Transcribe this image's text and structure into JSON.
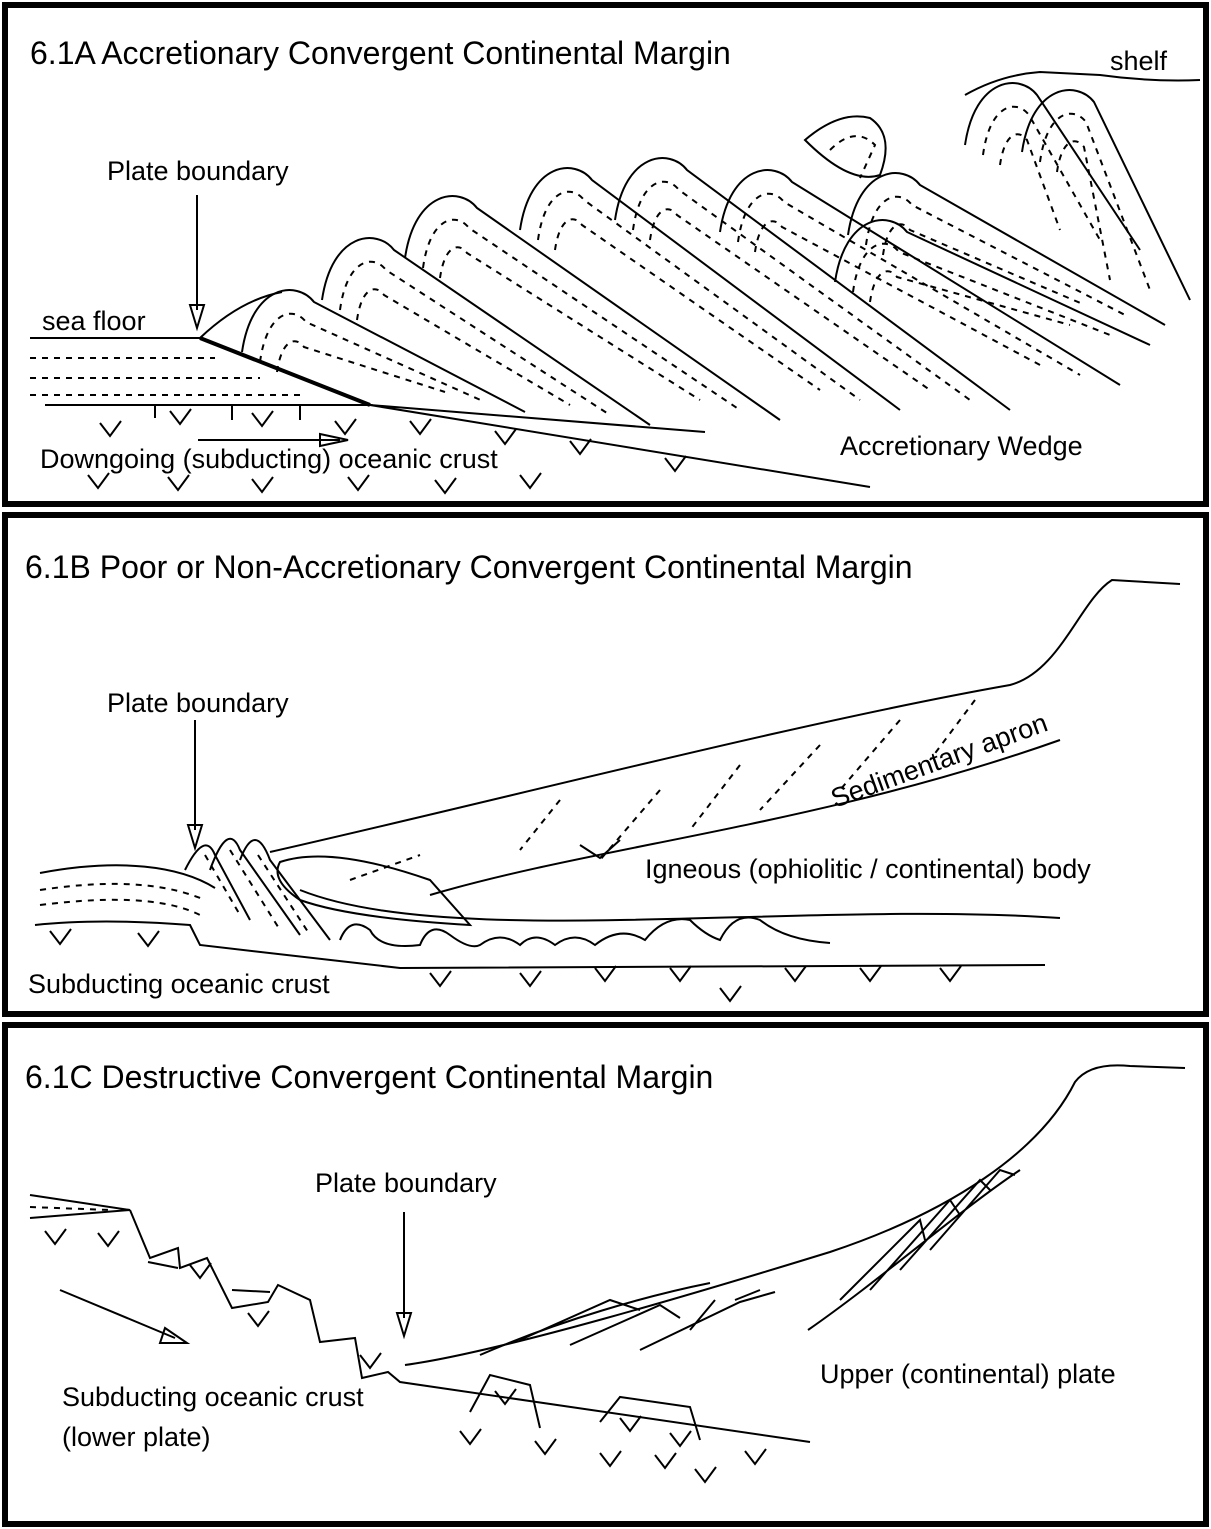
{
  "panels": [
    {
      "title": "6.1A  Accretionary Convergent Continental Margin",
      "labels": [
        "shelf",
        "Plate boundary",
        "sea floor",
        "Downgoing (subducting) oceanic crust",
        "Accretionary Wedge"
      ]
    },
    {
      "title": "6.1B  Poor or Non-Accretionary Convergent Continental Margin",
      "labels": [
        "Plate boundary",
        "Sedimentary apron",
        "Igneous (ophiolitic / continental) body",
        "Subducting oceanic crust"
      ]
    },
    {
      "title": "6.1C  Destructive Convergent Continental Margin",
      "labels": [
        "Plate boundary",
        "Upper (continental) plate",
        "Subducting oceanic crust",
        "(lower plate)"
      ]
    }
  ]
}
